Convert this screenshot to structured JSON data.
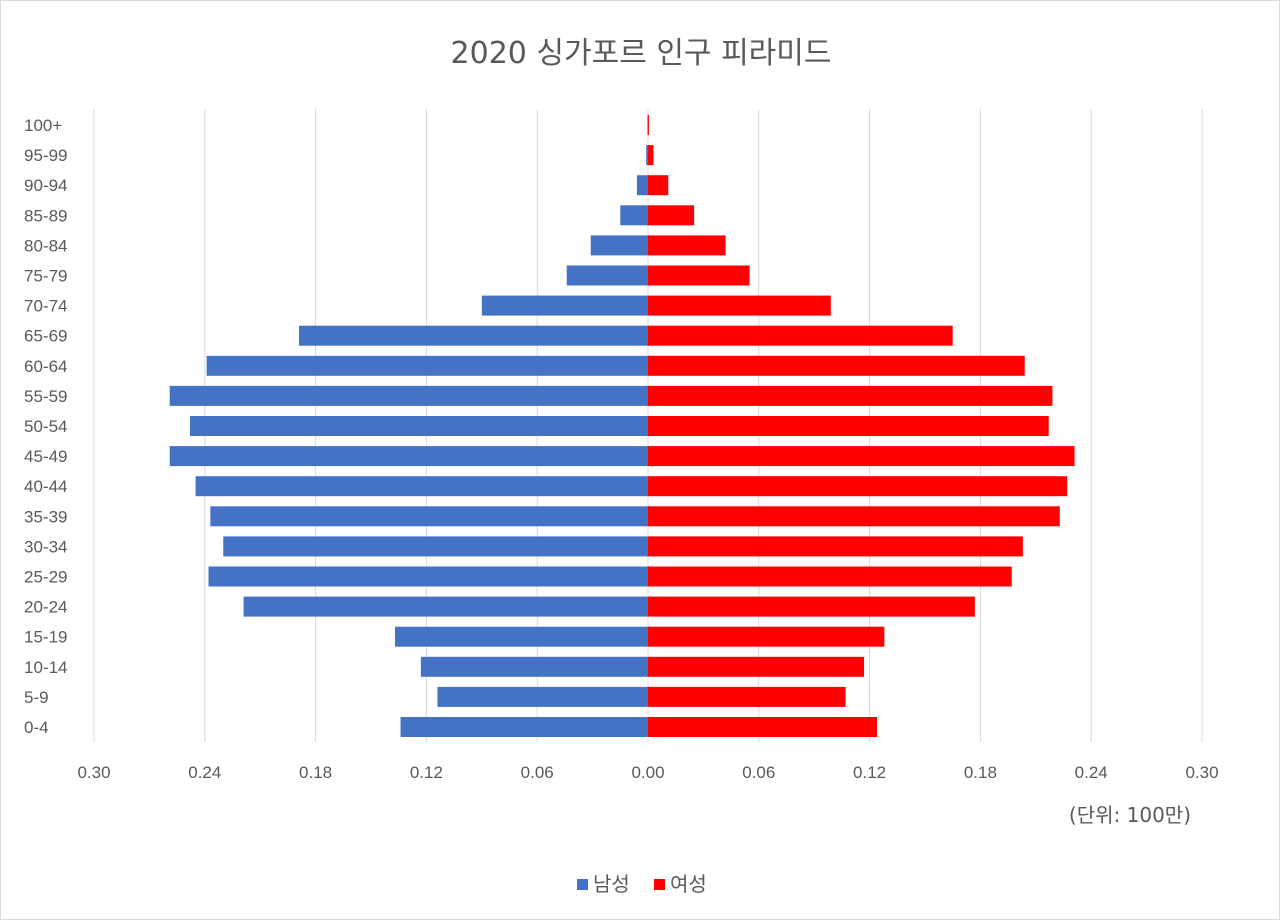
{
  "chart_data": {
    "type": "bar",
    "orientation": "horizontal",
    "subtype": "population-pyramid",
    "title": "2020 싱가포르 인구 피라미드",
    "unit_label": "(단위: 100만)",
    "categories": [
      "0-4",
      "5-9",
      "10-14",
      "15-19",
      "20-24",
      "25-29",
      "30-34",
      "35-39",
      "40-44",
      "45-49",
      "50-54",
      "55-59",
      "60-64",
      "65-69",
      "70-74",
      "75-79",
      "80-84",
      "85-89",
      "90-94",
      "95-99",
      "100+"
    ],
    "series": [
      {
        "name": "남성",
        "color": "#4472c4",
        "side": "left",
        "values": [
          0.134,
          0.114,
          0.123,
          0.137,
          0.219,
          0.238,
          0.23,
          0.237,
          0.245,
          0.259,
          0.248,
          0.259,
          0.239,
          0.189,
          0.09,
          0.044,
          0.031,
          0.015,
          0.006,
          0.001,
          0.0003
        ]
      },
      {
        "name": "여성",
        "color": "#ff0000",
        "side": "right",
        "values": [
          0.124,
          0.107,
          0.117,
          0.128,
          0.177,
          0.197,
          0.203,
          0.223,
          0.227,
          0.231,
          0.217,
          0.219,
          0.204,
          0.165,
          0.099,
          0.055,
          0.042,
          0.025,
          0.011,
          0.003,
          0.0005
        ]
      }
    ],
    "x_axis": {
      "ticks": [
        -0.3,
        -0.24,
        -0.18,
        -0.12,
        -0.06,
        0.0,
        0.06,
        0.12,
        0.18,
        0.24,
        0.3
      ],
      "tick_labels": [
        "0.30",
        "0.24",
        "0.18",
        "0.12",
        "0.06",
        "0.00",
        "0.06",
        "0.12",
        "0.18",
        "0.24",
        "0.30"
      ],
      "range": [
        -0.3,
        0.3
      ],
      "grid": true
    },
    "legend": {
      "position": "bottom"
    }
  }
}
